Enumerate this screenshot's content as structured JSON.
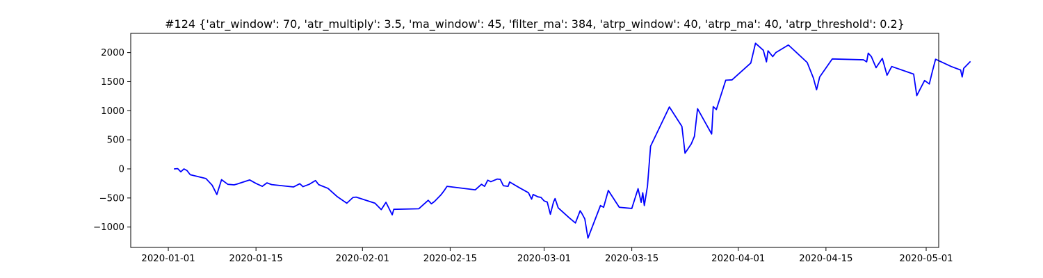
{
  "chart_data": {
    "type": "line",
    "title": "#124 {'atr_window': 70, 'atr_multiply': 3.5, 'ma_window': 45, 'filter_ma': 384, 'atrp_window': 40, 'atrp_ma': 40, 'atrp_threshold': 0.2}",
    "xlabel": "",
    "ylabel": "",
    "x_type": "date",
    "xlim": [
      "2019-12-26",
      "2020-05-03"
    ],
    "ylim": [
      -1350,
      2330
    ],
    "x_ticks": [
      "2020-01-01",
      "2020-01-15",
      "2020-02-01",
      "2020-02-15",
      "2020-03-01",
      "2020-03-15",
      "2020-04-01",
      "2020-04-15",
      "2020-05-01"
    ],
    "y_ticks": [
      -1000,
      -500,
      0,
      500,
      1000,
      1500,
      2000
    ],
    "grid": false,
    "legend": "none",
    "series": [
      {
        "color": "#0000ff",
        "points": [
          [
            "2020-01-02",
            0
          ],
          [
            "2020-01-02 12:00",
            5
          ],
          [
            "2020-01-03",
            -50
          ],
          [
            "2020-01-03 12:00",
            0
          ],
          [
            "2020-01-04",
            -30
          ],
          [
            "2020-01-04 12:00",
            -100
          ],
          [
            "2020-01-07",
            -165
          ],
          [
            "2020-01-08",
            -280
          ],
          [
            "2020-01-08 18:00",
            -440
          ],
          [
            "2020-01-09 12:00",
            -185
          ],
          [
            "2020-01-10 12:00",
            -265
          ],
          [
            "2020-01-11 12:00",
            -275
          ],
          [
            "2020-01-12",
            -260
          ],
          [
            "2020-01-14",
            -190
          ],
          [
            "2020-01-15",
            -250
          ],
          [
            "2020-01-16",
            -300
          ],
          [
            "2020-01-16 18:00",
            -240
          ],
          [
            "2020-01-17 12:00",
            -270
          ],
          [
            "2020-01-21",
            -310
          ],
          [
            "2020-01-22",
            -255
          ],
          [
            "2020-01-22 12:00",
            -305
          ],
          [
            "2020-01-23 12:00",
            -265
          ],
          [
            "2020-01-24 12:00",
            -200
          ],
          [
            "2020-01-25",
            -270
          ],
          [
            "2020-01-26 12:00",
            -335
          ],
          [
            "2020-01-28",
            -480
          ],
          [
            "2020-01-29 12:00",
            -590
          ],
          [
            "2020-01-30 12:00",
            -490
          ],
          [
            "2020-01-31",
            -485
          ],
          [
            "2020-02-03",
            -590
          ],
          [
            "2020-02-04",
            -700
          ],
          [
            "2020-02-04 18:00",
            -575
          ],
          [
            "2020-02-05 18:00",
            -790
          ],
          [
            "2020-02-06",
            -695
          ],
          [
            "2020-02-10",
            -685
          ],
          [
            "2020-02-11 12:00",
            -540
          ],
          [
            "2020-02-12",
            -600
          ],
          [
            "2020-02-12 12:00",
            -560
          ],
          [
            "2020-02-13 12:00",
            -450
          ],
          [
            "2020-02-14",
            -380
          ],
          [
            "2020-02-14 12:00",
            -300
          ],
          [
            "2020-02-19",
            -360
          ],
          [
            "2020-02-20",
            -265
          ],
          [
            "2020-02-20 12:00",
            -300
          ],
          [
            "2020-02-21",
            -195
          ],
          [
            "2020-02-21 12:00",
            -220
          ],
          [
            "2020-02-22 12:00",
            -175
          ],
          [
            "2020-02-23",
            -180
          ],
          [
            "2020-02-23 12:00",
            -290
          ],
          [
            "2020-02-24 06:00",
            -300
          ],
          [
            "2020-02-24 12:00",
            -225
          ],
          [
            "2020-02-26",
            -320
          ],
          [
            "2020-02-27 12:00",
            -410
          ],
          [
            "2020-02-28",
            -520
          ],
          [
            "2020-02-28 06:00",
            -440
          ],
          [
            "2020-02-29",
            -480
          ],
          [
            "2020-02-29 12:00",
            -490
          ],
          [
            "2020-03-01",
            -550
          ],
          [
            "2020-03-01 12:00",
            -570
          ],
          [
            "2020-03-02",
            -780
          ],
          [
            "2020-03-02 12:00",
            -570
          ],
          [
            "2020-03-02 18:00",
            -510
          ],
          [
            "2020-03-03 06:00",
            -670
          ],
          [
            "2020-03-05",
            -840
          ],
          [
            "2020-03-06",
            -930
          ],
          [
            "2020-03-06 18:00",
            -720
          ],
          [
            "2020-03-07",
            -760
          ],
          [
            "2020-03-07 12:00",
            -860
          ],
          [
            "2020-03-08",
            -1190
          ],
          [
            "2020-03-10",
            -630
          ],
          [
            "2020-03-10 12:00",
            -660
          ],
          [
            "2020-03-11 06:00",
            -370
          ],
          [
            "2020-03-13",
            -660
          ],
          [
            "2020-03-15",
            -680
          ],
          [
            "2020-03-16",
            -340
          ],
          [
            "2020-03-16 12:00",
            -575
          ],
          [
            "2020-03-16 18:00",
            -410
          ],
          [
            "2020-03-17",
            -630
          ],
          [
            "2020-03-17 12:00",
            -300
          ],
          [
            "2020-03-18",
            390
          ],
          [
            "2020-03-21",
            1065
          ],
          [
            "2020-03-23",
            730
          ],
          [
            "2020-03-23 12:00",
            270
          ],
          [
            "2020-03-24 12:00",
            430
          ],
          [
            "2020-03-25",
            560
          ],
          [
            "2020-03-25 12:00",
            1035
          ],
          [
            "2020-03-27 18:00",
            600
          ],
          [
            "2020-03-28",
            1070
          ],
          [
            "2020-03-28 12:00",
            1020
          ],
          [
            "2020-03-30",
            1525
          ],
          [
            "2020-03-31",
            1530
          ],
          [
            "2020-04-03",
            1820
          ],
          [
            "2020-04-03 18:00",
            2160
          ],
          [
            "2020-04-05",
            2040
          ],
          [
            "2020-04-05 12:00",
            1840
          ],
          [
            "2020-04-05 18:00",
            2030
          ],
          [
            "2020-04-06 12:00",
            1930
          ],
          [
            "2020-04-07",
            2000
          ],
          [
            "2020-04-09",
            2130
          ],
          [
            "2020-04-12",
            1830
          ],
          [
            "2020-04-13",
            1560
          ],
          [
            "2020-04-13 12:00",
            1360
          ],
          [
            "2020-04-14",
            1580
          ],
          [
            "2020-04-16",
            1890
          ],
          [
            "2020-04-21",
            1875
          ],
          [
            "2020-04-21 12:00",
            1840
          ],
          [
            "2020-04-21 18:00",
            1990
          ],
          [
            "2020-04-22 06:00",
            1930
          ],
          [
            "2020-04-23",
            1740
          ],
          [
            "2020-04-24",
            1900
          ],
          [
            "2020-04-24 18:00",
            1610
          ],
          [
            "2020-04-25 12:00",
            1760
          ],
          [
            "2020-04-29",
            1630
          ],
          [
            "2020-04-29 12:00",
            1260
          ],
          [
            "2020-04-30 18:00",
            1520
          ],
          [
            "2020-05-01 12:00",
            1460
          ],
          [
            "2020-05-02",
            1680
          ],
          [
            "2020-05-02 12:00",
            1885
          ],
          [
            "2020-05-05",
            1760
          ],
          [
            "2020-05-06 12:00",
            1700
          ],
          [
            "2020-05-06 18:00",
            1580
          ],
          [
            "2020-05-07",
            1730
          ],
          [
            "2020-05-08",
            1840
          ]
        ]
      }
    ]
  }
}
